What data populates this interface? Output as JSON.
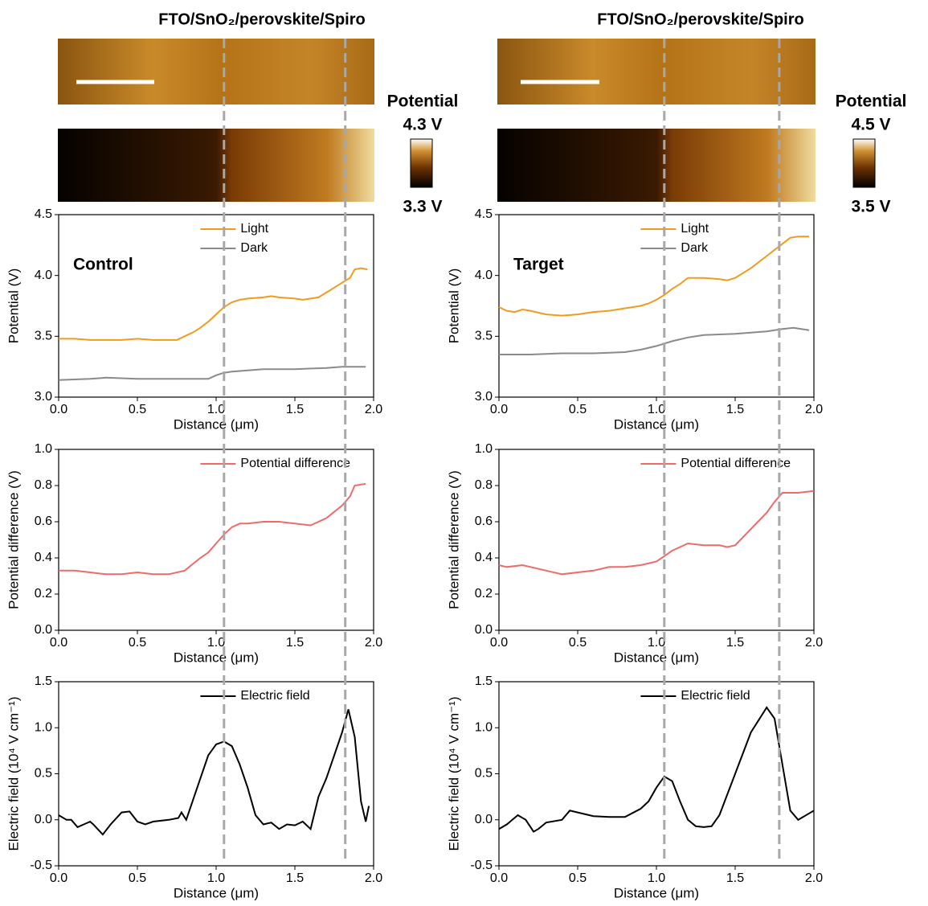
{
  "panels": [
    {
      "title": "FTO/SnO₂/perovskite/Spiro",
      "colorbar": {
        "label": "Potential",
        "max": "4.3 V",
        "min": "3.3 V"
      },
      "guides": [
        1.05,
        1.82
      ]
    },
    {
      "title": "FTO/SnO₂/perovskite/Spiro",
      "colorbar": {
        "label": "Potential",
        "max": "4.5 V",
        "min": "3.5 V"
      },
      "guides": [
        1.05,
        1.78
      ]
    }
  ],
  "chart_data": [
    {
      "type": "line",
      "annotation": "Control",
      "xlabel": "Distance (μm)",
      "ylabel": "Potential (V)",
      "legend": "top-center",
      "xlim": [
        0,
        2
      ],
      "ylim": [
        3,
        4.5
      ],
      "xticks": [
        {
          "value": 0,
          "label": "0.0"
        },
        0.5,
        {
          "value": 1,
          "label": "1.0"
        },
        1.5,
        {
          "value": 2,
          "label": "2.0"
        }
      ],
      "yticks": [
        {
          "value": 3,
          "label": "3.0"
        },
        3.5,
        {
          "value": 4,
          "label": "4.0"
        },
        4.5
      ],
      "series": [
        {
          "name": "Light",
          "color": "#f39a1e",
          "x": [
            0,
            0.1,
            0.2,
            0.3,
            0.4,
            0.5,
            0.6,
            0.7,
            0.75,
            0.8,
            0.85,
            0.9,
            0.95,
            1.0,
            1.05,
            1.1,
            1.15,
            1.2,
            1.3,
            1.35,
            1.4,
            1.5,
            1.55,
            1.6,
            1.65,
            1.7,
            1.75,
            1.8,
            1.85,
            1.88,
            1.92,
            1.96
          ],
          "values": [
            3.48,
            3.48,
            3.47,
            3.47,
            3.47,
            3.48,
            3.47,
            3.47,
            3.47,
            3.5,
            3.53,
            3.57,
            3.62,
            3.68,
            3.74,
            3.78,
            3.8,
            3.81,
            3.82,
            3.83,
            3.82,
            3.81,
            3.8,
            3.81,
            3.82,
            3.86,
            3.9,
            3.94,
            3.98,
            4.05,
            4.06,
            4.05
          ]
        },
        {
          "name": "Dark",
          "color": "#8a8a8a",
          "x": [
            0,
            0.2,
            0.3,
            0.5,
            0.7,
            0.95,
            1.0,
            1.05,
            1.1,
            1.3,
            1.5,
            1.7,
            1.8,
            1.95
          ],
          "values": [
            3.14,
            3.15,
            3.16,
            3.15,
            3.15,
            3.15,
            3.18,
            3.2,
            3.21,
            3.23,
            3.23,
            3.24,
            3.25,
            3.25
          ]
        }
      ]
    },
    {
      "type": "line",
      "xlabel": "Distance (μm)",
      "ylabel": "Potential difference (V)",
      "legend": "top-center",
      "xlim": [
        0,
        2
      ],
      "ylim": [
        0,
        1
      ],
      "xticks": [
        {
          "value": 0,
          "label": "0.0"
        },
        0.5,
        {
          "value": 1,
          "label": "1.0"
        },
        1.5,
        {
          "value": 2,
          "label": "2.0"
        }
      ],
      "yticks": [
        {
          "value": 0,
          "label": "0.0"
        },
        0.2,
        0.4,
        0.6,
        0.8,
        {
          "value": 1,
          "label": "1.0"
        }
      ],
      "series": [
        {
          "name": "Potential difference",
          "color": "#f06a6a",
          "x": [
            0,
            0.1,
            0.2,
            0.3,
            0.4,
            0.5,
            0.6,
            0.7,
            0.8,
            0.9,
            0.95,
            1.0,
            1.05,
            1.1,
            1.15,
            1.2,
            1.3,
            1.35,
            1.4,
            1.5,
            1.6,
            1.7,
            1.8,
            1.85,
            1.88,
            1.95
          ],
          "values": [
            0.33,
            0.33,
            0.32,
            0.31,
            0.31,
            0.32,
            0.31,
            0.31,
            0.33,
            0.4,
            0.43,
            0.48,
            0.53,
            0.57,
            0.59,
            0.59,
            0.6,
            0.6,
            0.6,
            0.59,
            0.58,
            0.62,
            0.69,
            0.74,
            0.8,
            0.81
          ]
        }
      ]
    },
    {
      "type": "line",
      "xlabel": "Distance (μm)",
      "ylabel": "Electric field (10⁴ V cm⁻¹)",
      "legend": "top-center",
      "xlim": [
        0,
        2
      ],
      "ylim": [
        -0.5,
        1.5
      ],
      "xticks": [
        {
          "value": 0,
          "label": "0.0"
        },
        0.5,
        {
          "value": 1,
          "label": "1.0"
        },
        1.5,
        {
          "value": 2,
          "label": "2.0"
        }
      ],
      "yticks": [
        -0.5,
        {
          "value": 0,
          "label": "0.0"
        },
        0.5,
        {
          "value": 1,
          "label": "1.0"
        },
        1.5
      ],
      "series": [
        {
          "name": "Electric field",
          "color": "#000000",
          "x": [
            0,
            0.05,
            0.08,
            0.12,
            0.2,
            0.22,
            0.28,
            0.33,
            0.4,
            0.45,
            0.5,
            0.55,
            0.6,
            0.7,
            0.76,
            0.78,
            0.81,
            0.85,
            0.9,
            0.95,
            1.0,
            1.05,
            1.1,
            1.15,
            1.2,
            1.25,
            1.3,
            1.35,
            1.4,
            1.45,
            1.5,
            1.55,
            1.6,
            1.65,
            1.7,
            1.75,
            1.8,
            1.84,
            1.88,
            1.92,
            1.95,
            1.97
          ],
          "values": [
            0.05,
            0,
            0,
            -0.08,
            -0.02,
            -0.05,
            -0.16,
            -0.05,
            0.08,
            0.09,
            -0.02,
            -0.05,
            -0.02,
            0,
            0.02,
            0.08,
            0,
            0.2,
            0.45,
            0.7,
            0.82,
            0.85,
            0.8,
            0.6,
            0.35,
            0.05,
            -0.05,
            -0.03,
            -0.1,
            -0.05,
            -0.06,
            -0.02,
            -0.1,
            0.25,
            0.45,
            0.7,
            0.95,
            1.2,
            0.9,
            0.2,
            -0.02,
            0.15
          ]
        }
      ]
    },
    {
      "type": "line",
      "annotation": "Target",
      "xlabel": "Distance (μm)",
      "ylabel": "Potential (V)",
      "legend": "top-center",
      "xlim": [
        0,
        2
      ],
      "ylim": [
        3,
        4.5
      ],
      "xticks": [
        {
          "value": 0,
          "label": "0.0"
        },
        0.5,
        {
          "value": 1,
          "label": "1.0"
        },
        1.5,
        {
          "value": 2,
          "label": "2.0"
        }
      ],
      "yticks": [
        {
          "value": 3,
          "label": "3.0"
        },
        3.5,
        {
          "value": 4,
          "label": "4.0"
        },
        4.5
      ],
      "series": [
        {
          "name": "Light",
          "color": "#f39a1e",
          "x": [
            0,
            0.05,
            0.1,
            0.15,
            0.2,
            0.3,
            0.4,
            0.5,
            0.6,
            0.7,
            0.8,
            0.9,
            0.95,
            1.0,
            1.05,
            1.1,
            1.15,
            1.2,
            1.3,
            1.4,
            1.45,
            1.5,
            1.6,
            1.7,
            1.8,
            1.85,
            1.9,
            1.97
          ],
          "values": [
            3.74,
            3.71,
            3.7,
            3.72,
            3.71,
            3.68,
            3.67,
            3.68,
            3.7,
            3.71,
            3.73,
            3.75,
            3.77,
            3.8,
            3.84,
            3.89,
            3.93,
            3.98,
            3.98,
            3.97,
            3.96,
            3.98,
            4.06,
            4.16,
            4.26,
            4.31,
            4.32,
            4.32
          ]
        },
        {
          "name": "Dark",
          "color": "#8a8a8a",
          "x": [
            0,
            0.2,
            0.4,
            0.6,
            0.8,
            0.9,
            1.0,
            1.1,
            1.2,
            1.3,
            1.5,
            1.7,
            1.8,
            1.87,
            1.97
          ],
          "values": [
            3.35,
            3.35,
            3.36,
            3.36,
            3.37,
            3.39,
            3.42,
            3.46,
            3.49,
            3.51,
            3.52,
            3.54,
            3.56,
            3.57,
            3.55
          ]
        }
      ]
    },
    {
      "type": "line",
      "xlabel": "Distance (μm)",
      "ylabel": "Potential difference (V)",
      "legend": "top-center",
      "xlim": [
        0,
        2
      ],
      "ylim": [
        0,
        1
      ],
      "xticks": [
        {
          "value": 0,
          "label": "0.0"
        },
        0.5,
        {
          "value": 1,
          "label": "1.0"
        },
        1.5,
        {
          "value": 2,
          "label": "2.0"
        }
      ],
      "yticks": [
        {
          "value": 0,
          "label": "0.0"
        },
        0.2,
        0.4,
        0.6,
        0.8,
        {
          "value": 1,
          "label": "1.0"
        }
      ],
      "series": [
        {
          "name": "Potential difference",
          "color": "#f06a6a",
          "x": [
            0,
            0.05,
            0.15,
            0.3,
            0.4,
            0.5,
            0.6,
            0.7,
            0.8,
            0.9,
            1.0,
            1.05,
            1.1,
            1.2,
            1.3,
            1.4,
            1.45,
            1.5,
            1.6,
            1.7,
            1.75,
            1.8,
            1.9,
            2.0
          ],
          "values": [
            0.36,
            0.35,
            0.36,
            0.33,
            0.31,
            0.32,
            0.33,
            0.35,
            0.35,
            0.36,
            0.38,
            0.41,
            0.44,
            0.48,
            0.47,
            0.47,
            0.46,
            0.47,
            0.56,
            0.65,
            0.71,
            0.76,
            0.76,
            0.77
          ]
        }
      ]
    },
    {
      "type": "line",
      "xlabel": "Distance (μm)",
      "ylabel": "Electric field (10⁴ V cm⁻¹)",
      "legend": "top-center",
      "xlim": [
        0,
        2
      ],
      "ylim": [
        -0.5,
        1.5
      ],
      "xticks": [
        {
          "value": 0,
          "label": "0.0"
        },
        0.5,
        {
          "value": 1,
          "label": "1.0"
        },
        1.5,
        {
          "value": 2,
          "label": "2.0"
        }
      ],
      "yticks": [
        -0.5,
        {
          "value": 0,
          "label": "0.0"
        },
        0.5,
        {
          "value": 1,
          "label": "1.0"
        },
        1.5
      ],
      "series": [
        {
          "name": "Electric field",
          "color": "#000000",
          "x": [
            0,
            0.05,
            0.12,
            0.17,
            0.22,
            0.25,
            0.3,
            0.4,
            0.45,
            0.5,
            0.6,
            0.7,
            0.8,
            0.9,
            0.95,
            1.0,
            1.05,
            1.1,
            1.15,
            1.2,
            1.25,
            1.3,
            1.35,
            1.4,
            1.5,
            1.6,
            1.7,
            1.75,
            1.8,
            1.85,
            1.9,
            2.0
          ],
          "values": [
            -0.1,
            -0.05,
            0.05,
            0,
            -0.13,
            -0.1,
            -0.03,
            0,
            0.1,
            0.08,
            0.04,
            0.03,
            0.03,
            0.12,
            0.2,
            0.35,
            0.47,
            0.42,
            0.2,
            0,
            -0.07,
            -0.08,
            -0.07,
            0.05,
            0.5,
            0.95,
            1.22,
            1.1,
            0.6,
            0.1,
            0,
            0.1
          ]
        }
      ]
    }
  ]
}
